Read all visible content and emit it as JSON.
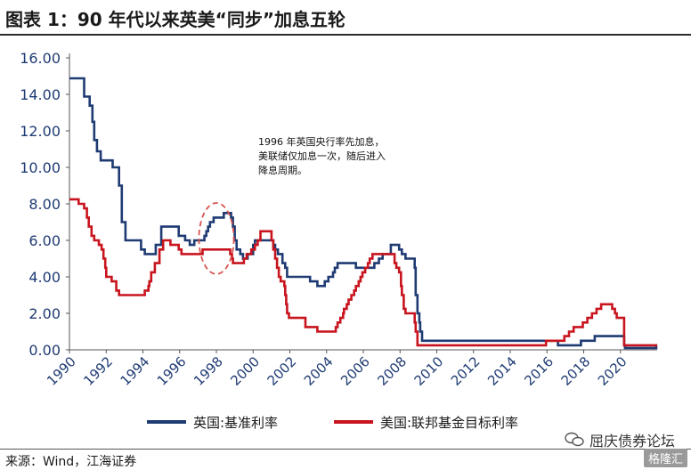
{
  "header": {
    "title": "图表 1：90 年代以来英美“同步”加息五轮"
  },
  "annotation": {
    "text": "1996 年英国央行率先加息，美联储仅加息一次，随后进入降息周期。"
  },
  "footer": {
    "source": "来源：Wind，江海证券",
    "watermark_text": "屈庆债券论坛",
    "watermark_badge": "格隆汇"
  },
  "colors": {
    "uk": "#1f3b73",
    "us": "#c8141e",
    "highlight": "#d9534f"
  },
  "chart_data": {
    "type": "line",
    "title": "",
    "xlabel": "",
    "ylabel": "",
    "ylim": [
      0,
      16
    ],
    "xlim": [
      1990,
      2022
    ],
    "y_ticks": [
      "0.00",
      "2.00",
      "4.00",
      "6.00",
      "8.00",
      "10.00",
      "12.00",
      "14.00",
      "16.00"
    ],
    "x_ticks": [
      "1990",
      "1992",
      "1994",
      "1996",
      "1998",
      "2000",
      "2002",
      "2004",
      "2006",
      "2008",
      "2010",
      "2012",
      "2014",
      "2016",
      "2018",
      "2020"
    ],
    "legend_position": "bottom",
    "series": [
      {
        "name": "英国:基准利率",
        "color": "#1f3b73",
        "step": true,
        "points": [
          [
            1990.0,
            14.88
          ],
          [
            1990.8,
            13.88
          ],
          [
            1991.1,
            13.38
          ],
          [
            1991.25,
            12.5
          ],
          [
            1991.35,
            11.5
          ],
          [
            1991.5,
            10.88
          ],
          [
            1991.7,
            10.38
          ],
          [
            1992.35,
            10.0
          ],
          [
            1992.7,
            9.0
          ],
          [
            1992.85,
            7.0
          ],
          [
            1993.05,
            6.0
          ],
          [
            1993.9,
            5.5
          ],
          [
            1994.1,
            5.25
          ],
          [
            1994.7,
            5.75
          ],
          [
            1995.0,
            6.75
          ],
          [
            1995.95,
            6.25
          ],
          [
            1996.3,
            6.0
          ],
          [
            1996.55,
            5.75
          ],
          [
            1996.8,
            6.0
          ],
          [
            1997.35,
            6.25
          ],
          [
            1997.45,
            6.5
          ],
          [
            1997.55,
            6.75
          ],
          [
            1997.65,
            7.0
          ],
          [
            1997.85,
            7.25
          ],
          [
            1998.4,
            7.5
          ],
          [
            1998.8,
            7.25
          ],
          [
            1998.9,
            6.75
          ],
          [
            1999.0,
            6.0
          ],
          [
            1999.1,
            5.5
          ],
          [
            1999.3,
            5.25
          ],
          [
            1999.45,
            5.0
          ],
          [
            1999.7,
            5.25
          ],
          [
            2000.0,
            5.75
          ],
          [
            2000.1,
            6.0
          ],
          [
            2001.1,
            5.75
          ],
          [
            2001.2,
            5.5
          ],
          [
            2001.35,
            5.25
          ],
          [
            2001.6,
            4.75
          ],
          [
            2001.75,
            4.5
          ],
          [
            2001.85,
            4.0
          ],
          [
            2003.1,
            3.75
          ],
          [
            2003.5,
            3.5
          ],
          [
            2003.9,
            3.75
          ],
          [
            2004.1,
            4.0
          ],
          [
            2004.35,
            4.25
          ],
          [
            2004.45,
            4.5
          ],
          [
            2004.6,
            4.75
          ],
          [
            2005.6,
            4.5
          ],
          [
            2006.6,
            4.75
          ],
          [
            2006.85,
            5.0
          ],
          [
            2007.05,
            5.25
          ],
          [
            2007.5,
            5.75
          ],
          [
            2007.95,
            5.5
          ],
          [
            2008.1,
            5.25
          ],
          [
            2008.3,
            5.0
          ],
          [
            2008.8,
            4.5
          ],
          [
            2008.85,
            3.0
          ],
          [
            2008.95,
            2.0
          ],
          [
            2009.05,
            1.5
          ],
          [
            2009.1,
            1.0
          ],
          [
            2009.2,
            0.5
          ],
          [
            2016.6,
            0.25
          ],
          [
            2017.85,
            0.5
          ],
          [
            2018.6,
            0.75
          ],
          [
            2020.2,
            0.25
          ],
          [
            2020.25,
            0.1
          ],
          [
            2021.95,
            0.25
          ],
          [
            2022.0,
            0.25
          ]
        ]
      },
      {
        "name": "美国:联邦基金目标利率",
        "color": "#c8141e",
        "step": true,
        "points": [
          [
            1990.0,
            8.25
          ],
          [
            1990.5,
            8.0
          ],
          [
            1990.8,
            7.75
          ],
          [
            1990.95,
            7.25
          ],
          [
            1991.05,
            6.75
          ],
          [
            1991.2,
            6.25
          ],
          [
            1991.35,
            6.0
          ],
          [
            1991.6,
            5.75
          ],
          [
            1991.75,
            5.5
          ],
          [
            1991.85,
            5.0
          ],
          [
            1991.95,
            4.5
          ],
          [
            1992.0,
            4.0
          ],
          [
            1992.3,
            3.75
          ],
          [
            1992.55,
            3.25
          ],
          [
            1992.7,
            3.0
          ],
          [
            1994.1,
            3.25
          ],
          [
            1994.3,
            3.5
          ],
          [
            1994.35,
            3.75
          ],
          [
            1994.45,
            4.25
          ],
          [
            1994.65,
            4.75
          ],
          [
            1994.9,
            5.5
          ],
          [
            1995.1,
            6.0
          ],
          [
            1995.5,
            5.75
          ],
          [
            1995.95,
            5.5
          ],
          [
            1996.1,
            5.25
          ],
          [
            1997.25,
            5.5
          ],
          [
            1998.75,
            5.25
          ],
          [
            1998.85,
            5.0
          ],
          [
            1998.9,
            4.75
          ],
          [
            1999.5,
            5.0
          ],
          [
            1999.65,
            5.25
          ],
          [
            1999.9,
            5.5
          ],
          [
            2000.1,
            5.75
          ],
          [
            2000.25,
            6.0
          ],
          [
            2000.4,
            6.5
          ],
          [
            2001.0,
            6.0
          ],
          [
            2001.1,
            5.5
          ],
          [
            2001.2,
            5.0
          ],
          [
            2001.3,
            4.5
          ],
          [
            2001.4,
            4.0
          ],
          [
            2001.5,
            3.75
          ],
          [
            2001.7,
            3.5
          ],
          [
            2001.75,
            3.0
          ],
          [
            2001.8,
            2.5
          ],
          [
            2001.85,
            2.0
          ],
          [
            2001.95,
            1.75
          ],
          [
            2002.85,
            1.25
          ],
          [
            2003.5,
            1.0
          ],
          [
            2004.5,
            1.25
          ],
          [
            2004.6,
            1.5
          ],
          [
            2004.75,
            1.75
          ],
          [
            2004.9,
            2.0
          ],
          [
            2004.95,
            2.25
          ],
          [
            2005.1,
            2.5
          ],
          [
            2005.2,
            2.75
          ],
          [
            2005.35,
            3.0
          ],
          [
            2005.5,
            3.25
          ],
          [
            2005.6,
            3.5
          ],
          [
            2005.75,
            3.75
          ],
          [
            2005.85,
            4.0
          ],
          [
            2005.95,
            4.25
          ],
          [
            2006.1,
            4.5
          ],
          [
            2006.25,
            4.75
          ],
          [
            2006.35,
            5.0
          ],
          [
            2006.5,
            5.25
          ],
          [
            2007.7,
            4.75
          ],
          [
            2007.8,
            4.5
          ],
          [
            2007.95,
            4.25
          ],
          [
            2008.05,
            3.5
          ],
          [
            2008.1,
            3.0
          ],
          [
            2008.2,
            2.25
          ],
          [
            2008.3,
            2.0
          ],
          [
            2008.8,
            1.5
          ],
          [
            2008.85,
            1.0
          ],
          [
            2008.95,
            0.25
          ],
          [
            2015.95,
            0.5
          ],
          [
            2016.95,
            0.75
          ],
          [
            2017.2,
            1.0
          ],
          [
            2017.45,
            1.25
          ],
          [
            2017.95,
            1.5
          ],
          [
            2018.2,
            1.75
          ],
          [
            2018.45,
            2.0
          ],
          [
            2018.7,
            2.25
          ],
          [
            2018.95,
            2.5
          ],
          [
            2019.55,
            2.25
          ],
          [
            2019.7,
            2.0
          ],
          [
            2019.8,
            1.75
          ],
          [
            2020.2,
            0.25
          ],
          [
            2022.0,
            0.25
          ]
        ]
      }
    ],
    "highlight": {
      "shape": "ellipse",
      "style": "dashed",
      "center": [
        1998.0,
        6.1
      ],
      "radius_x_years": 0.95,
      "radius_y_value": 1.95
    }
  }
}
